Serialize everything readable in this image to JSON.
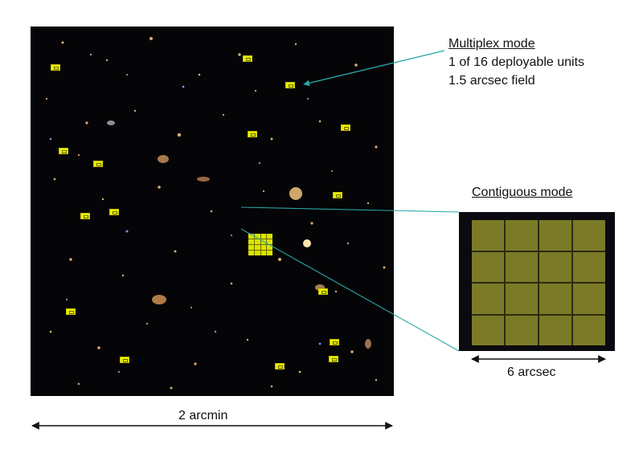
{
  "labels": {
    "multiplex_title": "Multiplex mode",
    "multiplex_line2": "1 of 16 deployable units",
    "multiplex_line3": "1.5 arcsec field",
    "contiguous_title": "Contiguous mode",
    "inset_scale": "6 arcsec",
    "field_scale": "2 arcmin"
  },
  "colors": {
    "ifu_fill": "#e8f200",
    "leader_line": "#2aa7a7",
    "background_sky": "#050407"
  }
}
